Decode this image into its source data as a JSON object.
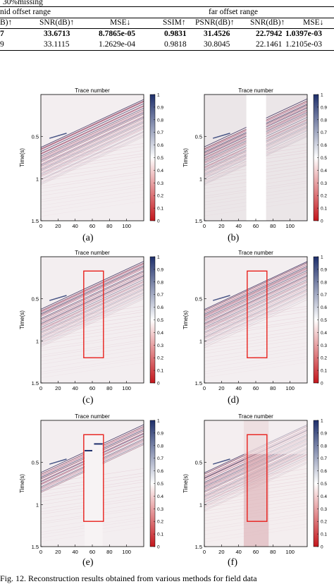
{
  "table": {
    "caption_fragment": "30%missing",
    "group_headers": [
      "nid offset range",
      "far offset range"
    ],
    "columns": [
      "B)↑",
      "SNR(dB)↑",
      "MSE↓",
      "SSIM↑",
      "PSNR(dB)↑",
      "SNR(dB)↑",
      "MSE↓"
    ],
    "rows": [
      {
        "bold": true,
        "values": [
          "7",
          "33.6713",
          "8.7865e-05",
          "0.9831",
          "31.4526",
          "22.7942",
          "1.0397e-03"
        ]
      },
      {
        "bold": false,
        "values": [
          "9",
          "33.1115",
          "1.2629e-04",
          "0.9818",
          "30.8045",
          "22.1461",
          "1.2105e-03"
        ]
      }
    ]
  },
  "plot_common": {
    "title": "Trace number",
    "ylabel": "Time(s)",
    "x_ticks": [
      "0",
      "20",
      "40",
      "60",
      "80",
      "100"
    ],
    "y_ticks": [
      "0.5",
      "1",
      "1.5"
    ],
    "colorbar_ticks": [
      "1",
      "0.9",
      "0.8",
      "0.7",
      "0.6",
      "0.5",
      "0.4",
      "0.3",
      "0.2",
      "0.1",
      "0"
    ],
    "colors": {
      "high": "#1e2f6b",
      "mid": "#ffffff",
      "low": "#c4161c",
      "box": "#e8201c"
    }
  },
  "panels": [
    {
      "label": "(a)",
      "variant": "full"
    },
    {
      "label": "(b)",
      "variant": "gap"
    },
    {
      "label": "(c)",
      "variant": "boxed"
    },
    {
      "label": "(d)",
      "variant": "boxed"
    },
    {
      "label": "(e)",
      "variant": "boxed-sparse"
    },
    {
      "label": "(f)",
      "variant": "boxed-blur"
    }
  ],
  "figure_caption": "Fig. 12.   Reconstruction results obtained from various methods for field data"
}
